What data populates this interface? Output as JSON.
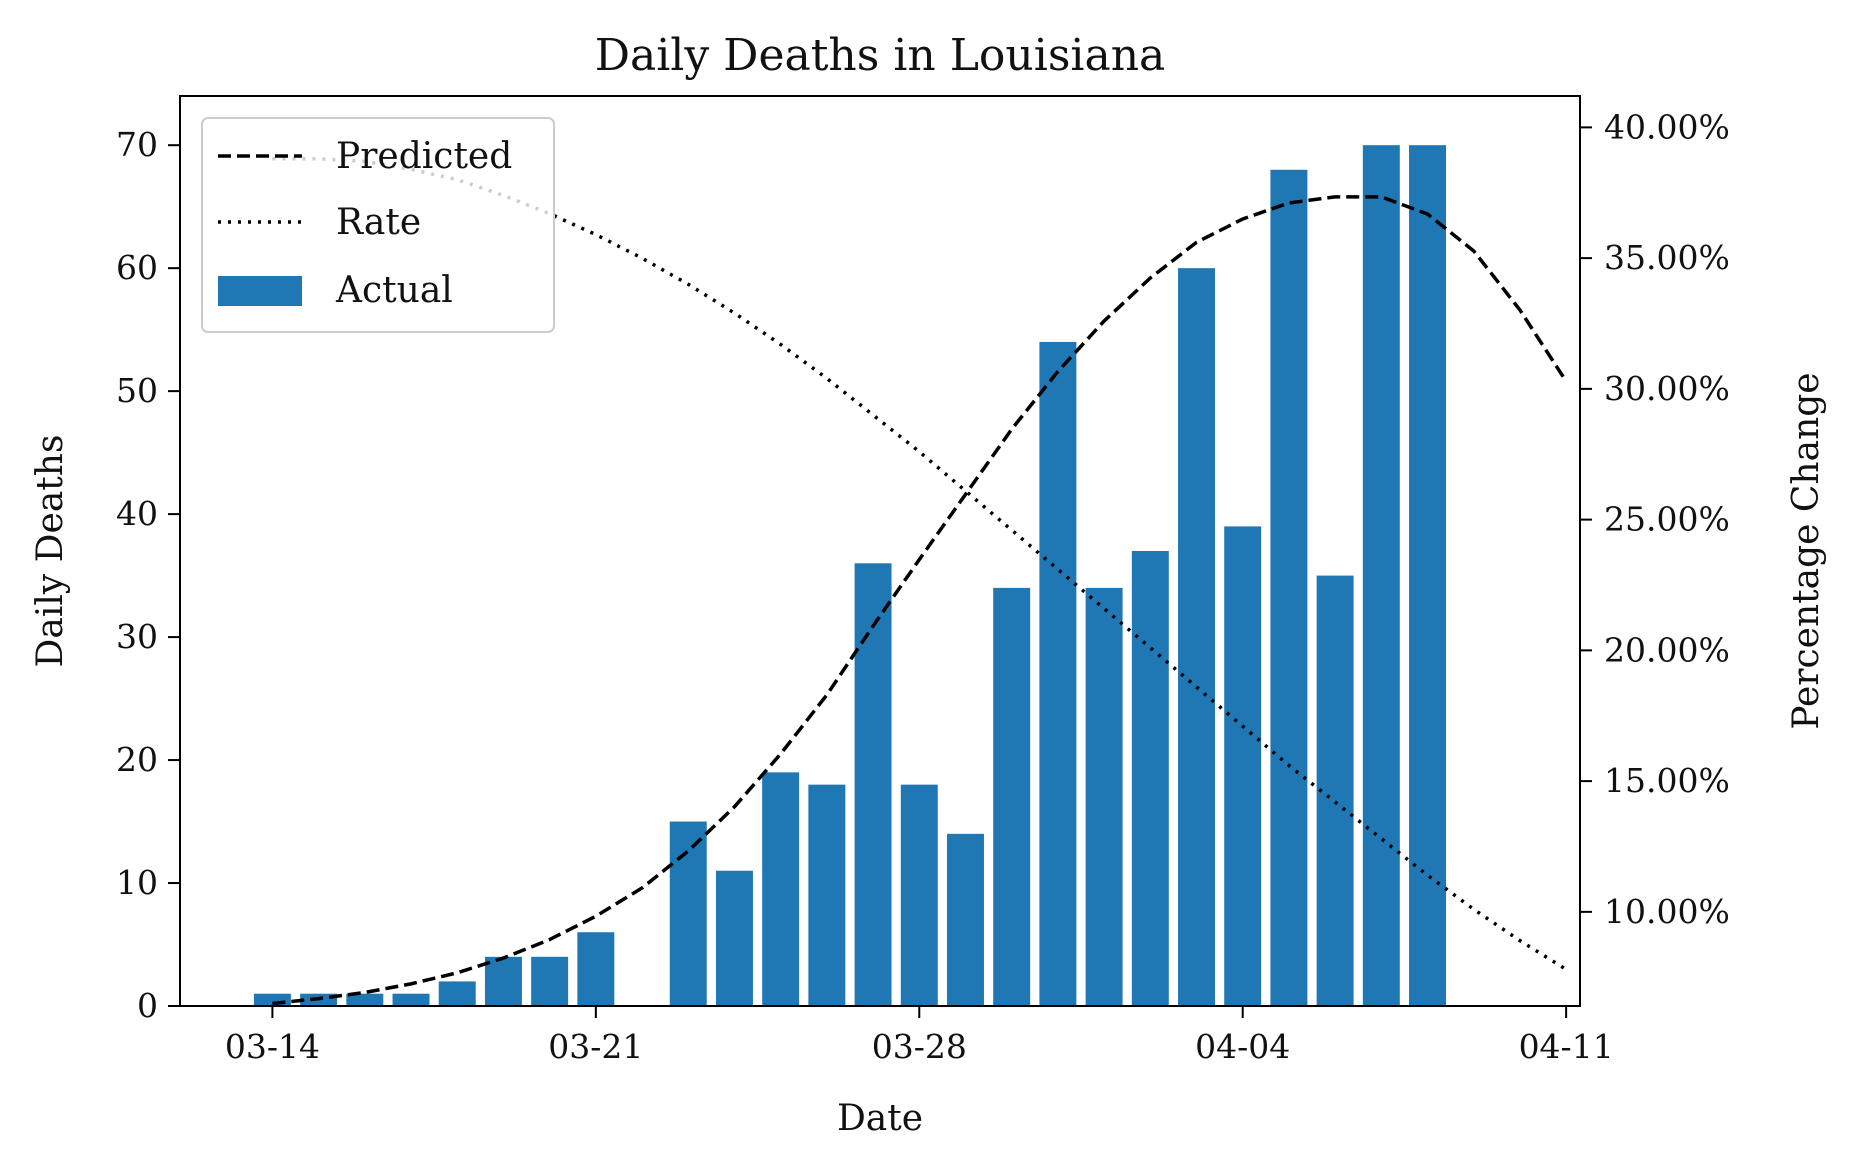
{
  "chart_data": {
    "type": "bar",
    "title": "Daily Deaths in Louisiana",
    "xlabel": "Date",
    "ylabel": "Daily Deaths",
    "y2label": "Percentage Change",
    "x_axis": {
      "range": [
        "2020-03-14",
        "2020-04-11"
      ],
      "ticks": [
        {
          "date": "2020-03-14",
          "label": "03-14"
        },
        {
          "date": "2020-03-21",
          "label": "03-21"
        },
        {
          "date": "2020-03-28",
          "label": "03-28"
        },
        {
          "date": "2020-04-04",
          "label": "04-04"
        },
        {
          "date": "2020-04-11",
          "label": "04-11"
        }
      ]
    },
    "ylim": [
      0,
      74
    ],
    "yticks": [
      0,
      10,
      20,
      30,
      40,
      50,
      60,
      70
    ],
    "y2lim": [
      6.4,
      41.2
    ],
    "y2ticks": [
      {
        "value": 10,
        "label": "10.00%"
      },
      {
        "value": 15,
        "label": "15.00%"
      },
      {
        "value": 20,
        "label": "20.00%"
      },
      {
        "value": 25,
        "label": "25.00%"
      },
      {
        "value": 30,
        "label": "30.00%"
      },
      {
        "value": 35,
        "label": "35.00%"
      },
      {
        "value": 40,
        "label": "40.00%"
      }
    ],
    "legend_position": "top-left",
    "colors": {
      "actual": "#1f77b4",
      "predicted": "#000000",
      "rate": "#000000"
    },
    "series": [
      {
        "name": "Actual",
        "type": "bar",
        "axis": "left",
        "points": [
          {
            "x": "2020-03-14",
            "y": 1
          },
          {
            "x": "2020-03-15",
            "y": 1
          },
          {
            "x": "2020-03-16",
            "y": 1
          },
          {
            "x": "2020-03-17",
            "y": 1
          },
          {
            "x": "2020-03-18",
            "y": 2
          },
          {
            "x": "2020-03-19",
            "y": 4
          },
          {
            "x": "2020-03-20",
            "y": 4
          },
          {
            "x": "2020-03-21",
            "y": 6
          },
          {
            "x": "2020-03-23",
            "y": 15
          },
          {
            "x": "2020-03-24",
            "y": 11
          },
          {
            "x": "2020-03-25",
            "y": 19
          },
          {
            "x": "2020-03-26",
            "y": 18
          },
          {
            "x": "2020-03-27",
            "y": 36
          },
          {
            "x": "2020-03-28",
            "y": 18
          },
          {
            "x": "2020-03-29",
            "y": 14
          },
          {
            "x": "2020-03-30",
            "y": 34
          },
          {
            "x": "2020-03-31",
            "y": 54
          },
          {
            "x": "2020-04-01",
            "y": 34
          },
          {
            "x": "2020-04-02",
            "y": 37
          },
          {
            "x": "2020-04-03",
            "y": 60
          },
          {
            "x": "2020-04-04",
            "y": 39
          },
          {
            "x": "2020-04-05",
            "y": 68
          },
          {
            "x": "2020-04-06",
            "y": 35
          },
          {
            "x": "2020-04-07",
            "y": 70
          },
          {
            "x": "2020-04-08",
            "y": 70
          }
        ]
      },
      {
        "name": "Predicted",
        "type": "line",
        "style": "dashed",
        "axis": "left",
        "points": [
          {
            "x": "2020-03-14",
            "y": 0.2
          },
          {
            "x": "2020-03-15",
            "y": 0.6
          },
          {
            "x": "2020-03-16",
            "y": 1.1
          },
          {
            "x": "2020-03-17",
            "y": 1.8
          },
          {
            "x": "2020-03-18",
            "y": 2.7
          },
          {
            "x": "2020-03-19",
            "y": 3.9
          },
          {
            "x": "2020-03-20",
            "y": 5.4
          },
          {
            "x": "2020-03-21",
            "y": 7.3
          },
          {
            "x": "2020-03-22",
            "y": 9.6
          },
          {
            "x": "2020-03-23",
            "y": 12.6
          },
          {
            "x": "2020-03-24",
            "y": 16.2
          },
          {
            "x": "2020-03-25",
            "y": 20.5
          },
          {
            "x": "2020-03-26",
            "y": 25.3
          },
          {
            "x": "2020-03-27",
            "y": 30.9
          },
          {
            "x": "2020-03-28",
            "y": 36.3
          },
          {
            "x": "2020-03-29",
            "y": 41.6
          },
          {
            "x": "2020-03-30",
            "y": 46.9
          },
          {
            "x": "2020-03-31",
            "y": 51.6
          },
          {
            "x": "2020-04-01",
            "y": 55.7
          },
          {
            "x": "2020-04-02",
            "y": 59.2
          },
          {
            "x": "2020-04-03",
            "y": 62.1
          },
          {
            "x": "2020-04-04",
            "y": 64.0
          },
          {
            "x": "2020-04-05",
            "y": 65.3
          },
          {
            "x": "2020-04-06",
            "y": 65.8
          },
          {
            "x": "2020-04-07",
            "y": 65.8
          },
          {
            "x": "2020-04-08",
            "y": 64.4
          },
          {
            "x": "2020-04-09",
            "y": 61.4
          },
          {
            "x": "2020-04-10",
            "y": 56.6
          },
          {
            "x": "2020-04-11",
            "y": 50.8
          }
        ]
      },
      {
        "name": "Rate",
        "type": "line",
        "style": "dotted",
        "axis": "right",
        "points": [
          {
            "x": "2020-03-14",
            "y": 38.8
          },
          {
            "x": "2020-03-15",
            "y": 38.8
          },
          {
            "x": "2020-03-16",
            "y": 38.7
          },
          {
            "x": "2020-03-17",
            "y": 38.4
          },
          {
            "x": "2020-03-18",
            "y": 38.0
          },
          {
            "x": "2020-03-19",
            "y": 37.4
          },
          {
            "x": "2020-03-20",
            "y": 36.7
          },
          {
            "x": "2020-03-21",
            "y": 35.9
          },
          {
            "x": "2020-03-22",
            "y": 35.0
          },
          {
            "x": "2020-03-23",
            "y": 34.0
          },
          {
            "x": "2020-03-24",
            "y": 32.9
          },
          {
            "x": "2020-03-25",
            "y": 31.7
          },
          {
            "x": "2020-03-26",
            "y": 30.4
          },
          {
            "x": "2020-03-27",
            "y": 29.0
          },
          {
            "x": "2020-03-28",
            "y": 27.6
          },
          {
            "x": "2020-03-29",
            "y": 26.1
          },
          {
            "x": "2020-03-30",
            "y": 24.6
          },
          {
            "x": "2020-03-31",
            "y": 23.1
          },
          {
            "x": "2020-04-01",
            "y": 21.6
          },
          {
            "x": "2020-04-02",
            "y": 20.1
          },
          {
            "x": "2020-04-03",
            "y": 18.6
          },
          {
            "x": "2020-04-04",
            "y": 17.1
          },
          {
            "x": "2020-04-05",
            "y": 15.6
          },
          {
            "x": "2020-04-06",
            "y": 14.2
          },
          {
            "x": "2020-04-07",
            "y": 12.8
          },
          {
            "x": "2020-04-08",
            "y": 11.4
          },
          {
            "x": "2020-04-09",
            "y": 10.1
          },
          {
            "x": "2020-04-10",
            "y": 8.9
          },
          {
            "x": "2020-04-11",
            "y": 7.8
          }
        ]
      }
    ]
  }
}
